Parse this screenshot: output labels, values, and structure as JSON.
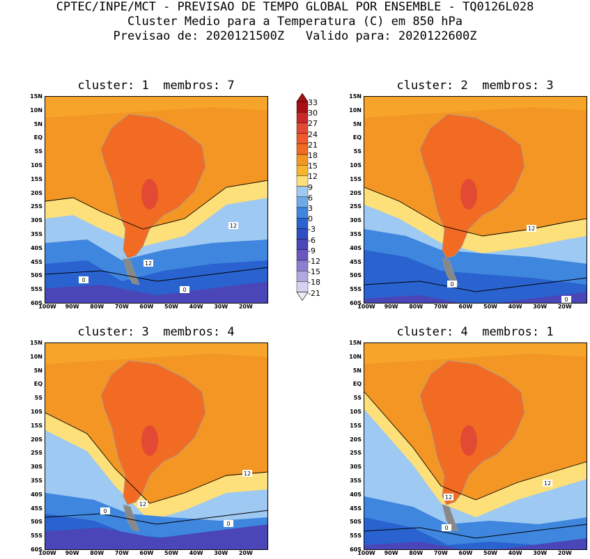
{
  "header": {
    "line1": "CPTEC/INPE/MCT - PREVISAO DE TEMPO GLOBAL POR ENSEMBLE - TQ0126L028",
    "line2": "Cluster Medio para a Temperatura (C) em 850 hPa",
    "line3": "Previsao de: 2020121500Z   Valido para: 2020122600Z"
  },
  "panels": [
    {
      "title": "cluster: 1  membros: 7",
      "contour_labels": [
        "12",
        "12",
        "0",
        "0"
      ]
    },
    {
      "title": "cluster: 2  membros: 3",
      "contour_labels": [
        "12",
        "0",
        "0"
      ]
    },
    {
      "title": "cluster: 3  membros: 4",
      "contour_labels": [
        "12",
        "12",
        "0",
        "0"
      ]
    },
    {
      "title": "cluster: 4  membros: 1",
      "contour_labels": [
        "12",
        "12",
        "0"
      ]
    }
  ],
  "lat_labels": [
    "15N",
    "10N",
    "5N",
    "EQ",
    "5S",
    "10S",
    "15S",
    "20S",
    "25S",
    "30S",
    "35S",
    "40S",
    "45S",
    "50S",
    "55S",
    "60S"
  ],
  "lon_labels": [
    "100W",
    "90W",
    "80W",
    "70W",
    "60W",
    "50W",
    "40W",
    "30W",
    "20W"
  ],
  "colorbar": {
    "labels": [
      "33",
      "30",
      "27",
      "24",
      "21",
      "18",
      "15",
      "12",
      "9",
      "6",
      "3",
      "0",
      "-3",
      "-6",
      "-9",
      "-12",
      "-15",
      "-18",
      "-21"
    ],
    "colors": [
      "#a50f15",
      "#c8282a",
      "#e34a33",
      "#f0592a",
      "#f26b22",
      "#f39624",
      "#f8b32f",
      "#fde07a",
      "#9ec9f2",
      "#6fa9ea",
      "#3f86de",
      "#2a63cf",
      "#2e4ec2",
      "#4a46b8",
      "#6a58c0",
      "#8c7ed0",
      "#b4a8e0",
      "#d8d2f0"
    ]
  }
}
